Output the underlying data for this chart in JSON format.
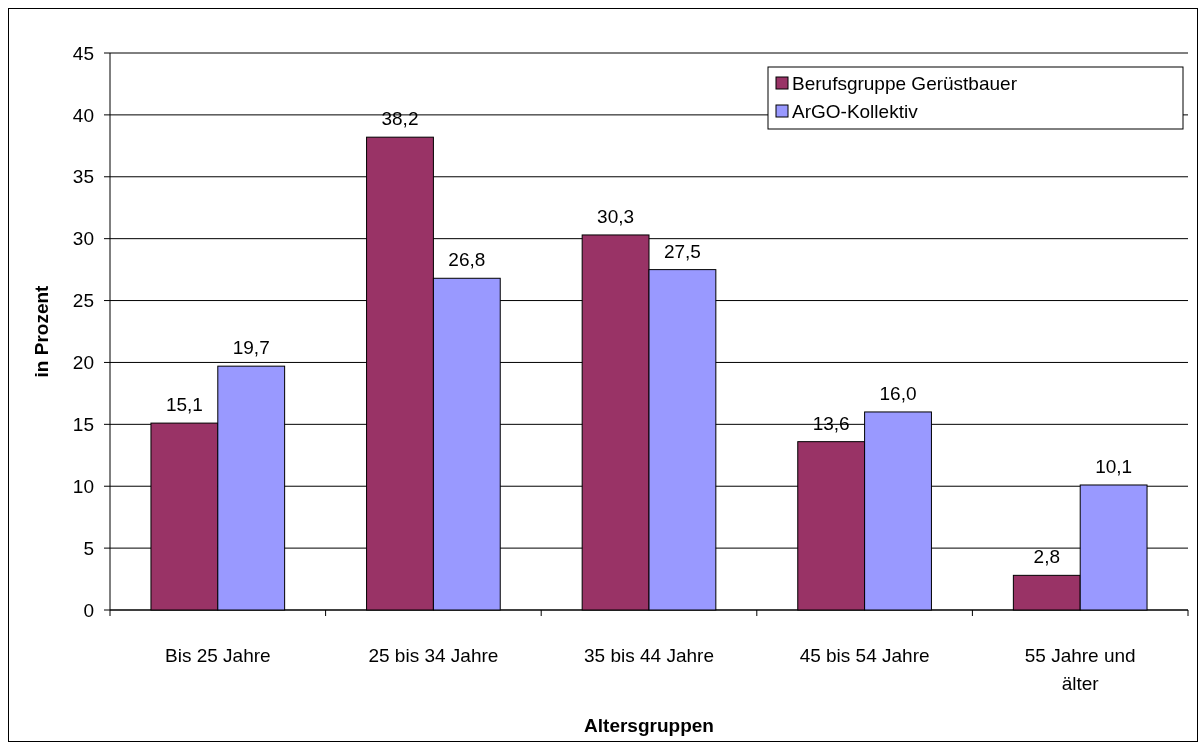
{
  "chart_data": {
    "type": "bar",
    "xlabel": "Altersgruppen",
    "ylabel": "in Prozent",
    "categories": [
      "Bis 25 Jahre",
      "25 bis 34 Jahre",
      "35 bis 44 Jahre",
      "45 bis 54 Jahre",
      "55 Jahre und älter"
    ],
    "series": [
      {
        "name": "Berufsgruppe Gerüstbauer",
        "color": "#993366",
        "values": [
          15.1,
          38.2,
          30.3,
          13.6,
          2.8
        ],
        "value_labels": [
          "15,1",
          "38,2",
          "30,3",
          "13,6",
          "2,8"
        ]
      },
      {
        "name": "ArGO-Kollektiv",
        "color": "#9999ff",
        "values": [
          19.7,
          26.8,
          27.5,
          16.0,
          10.1
        ],
        "value_labels": [
          "19,7",
          "26,8",
          "27,5",
          "16,0",
          "10,1"
        ]
      }
    ],
    "ylim": [
      0,
      45
    ],
    "yticks": [
      0,
      5,
      10,
      15,
      20,
      25,
      30,
      35,
      40,
      45
    ],
    "grid": "y",
    "legend": "top right"
  }
}
